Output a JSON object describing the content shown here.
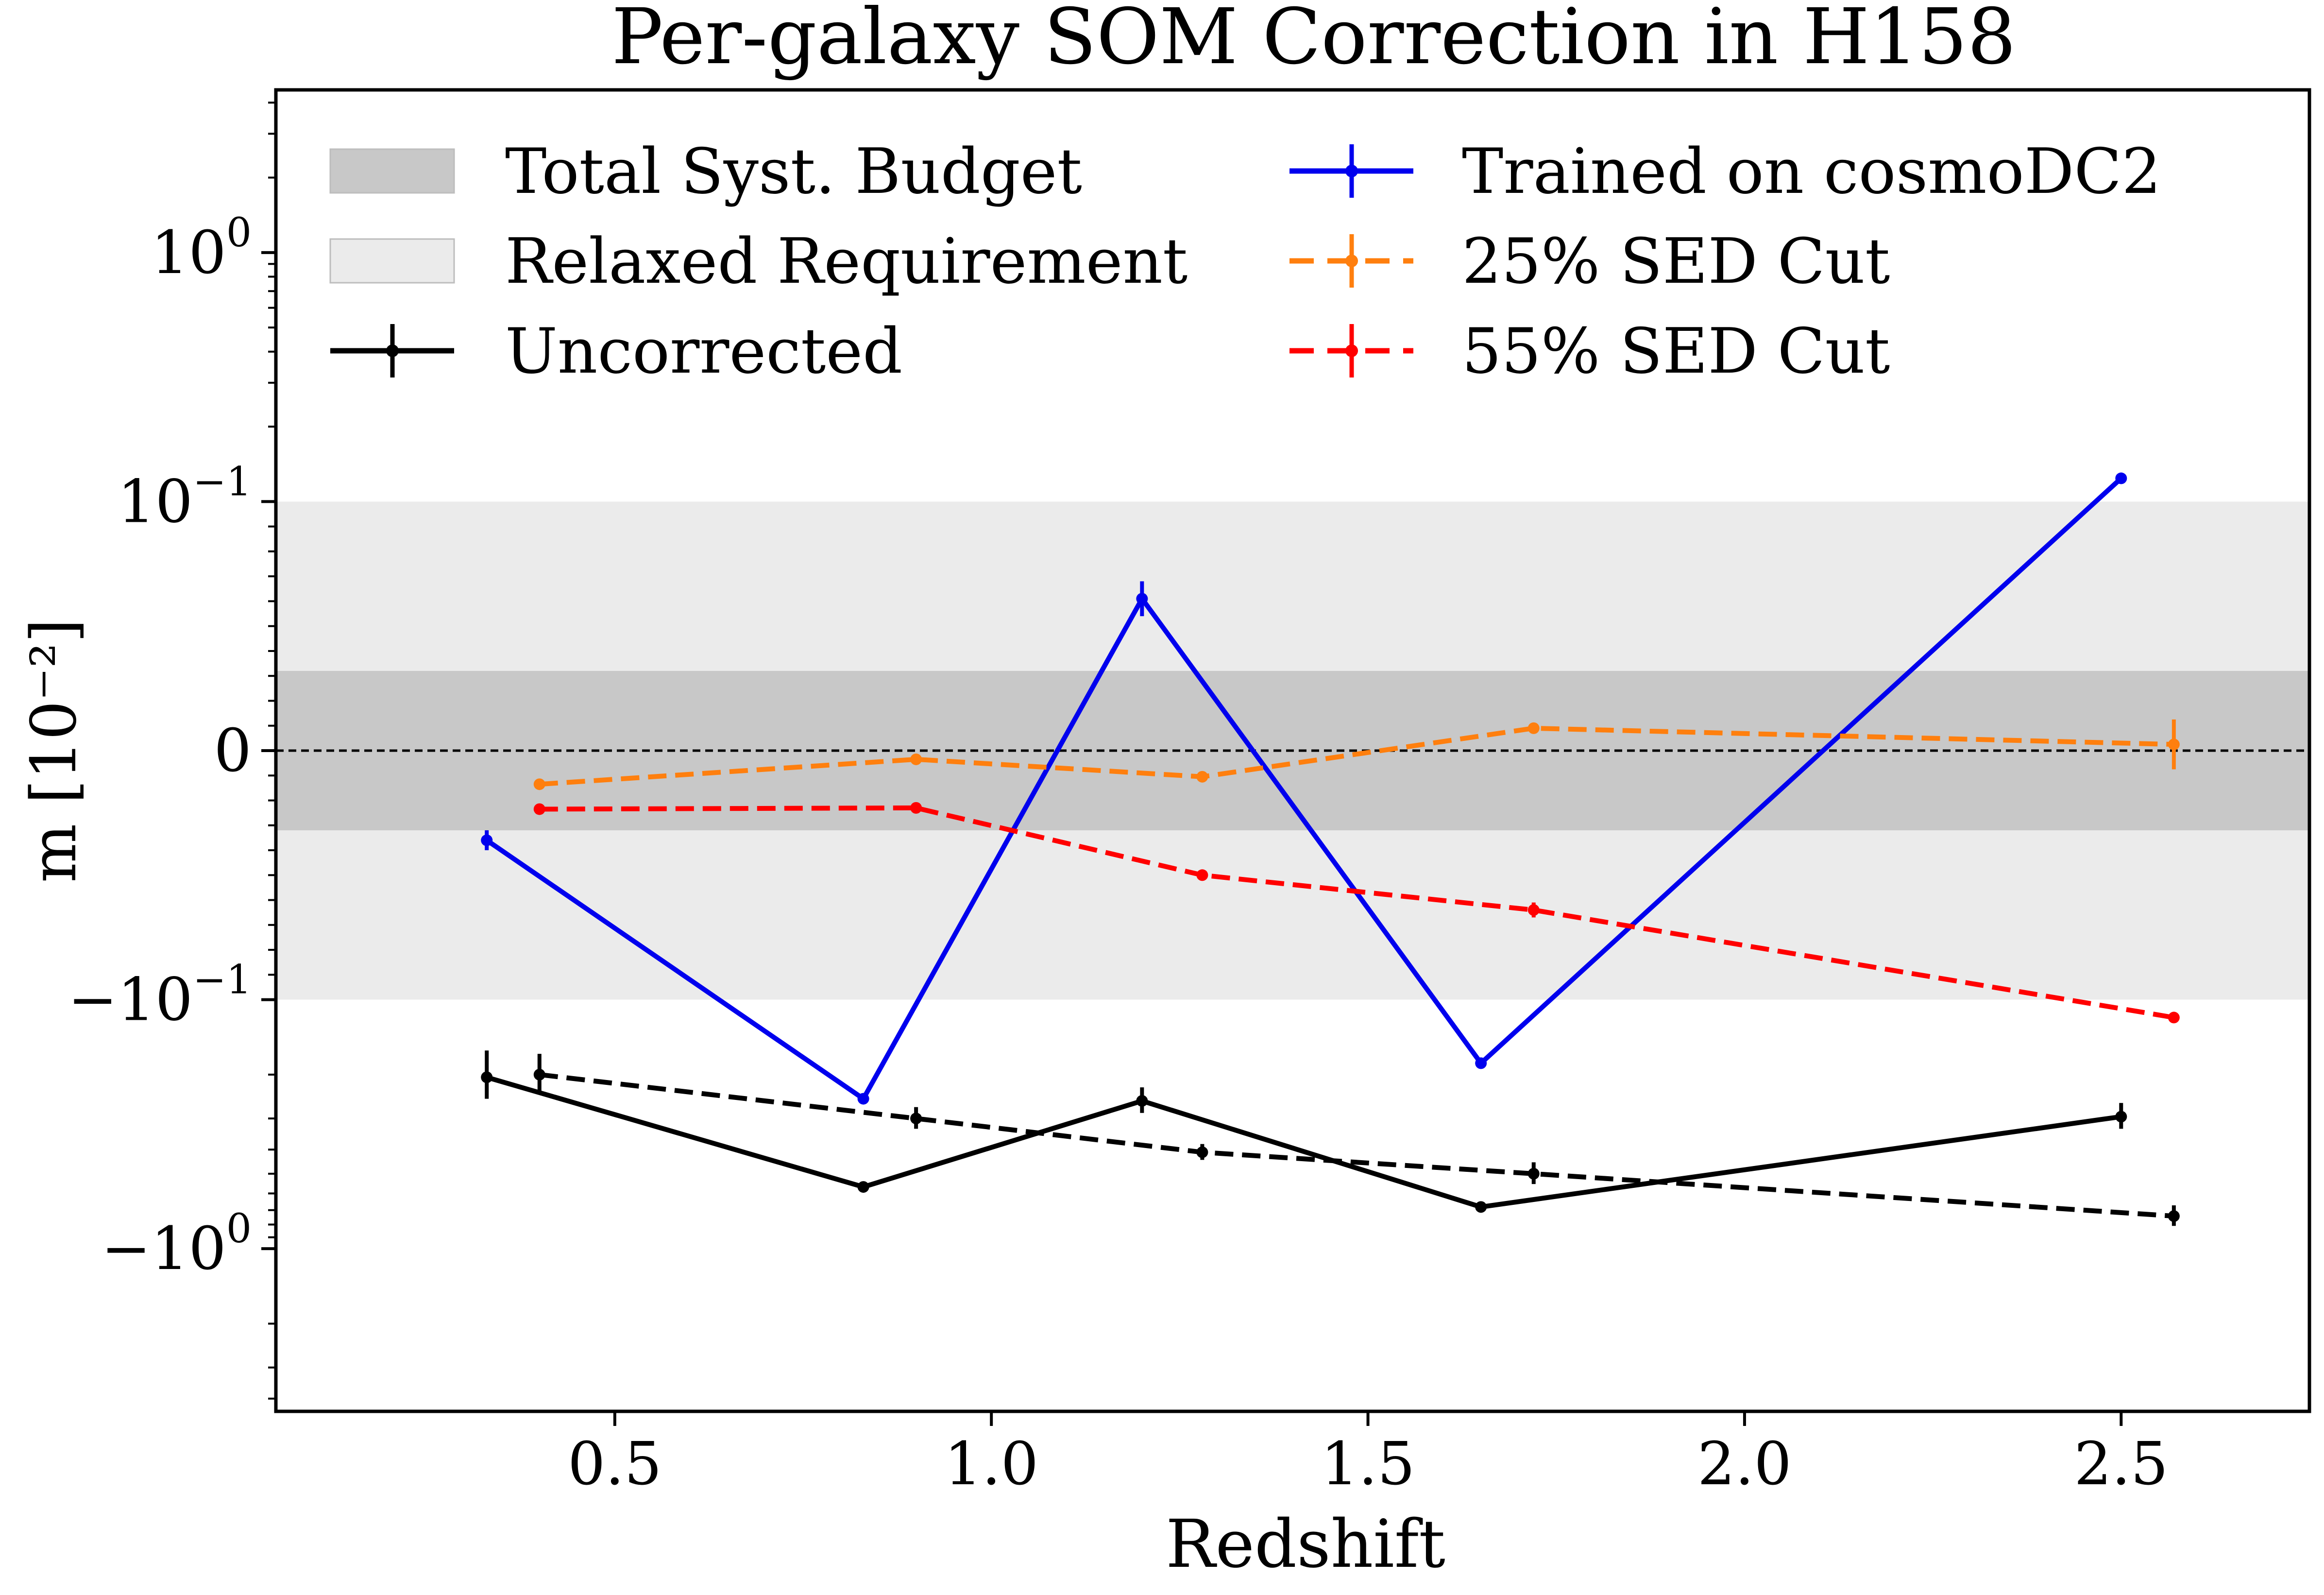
{
  "chart_data": {
    "type": "line",
    "title": "Per-galaxy SOM Correction in H158",
    "xlabel": "Redshift",
    "ylabel": "m [10⁻²]",
    "xlim": [
      0.05,
      2.75
    ],
    "y_scale": "symlog",
    "y_linthresh": 0.1,
    "ylim": [
      -4.5,
      4.5
    ],
    "x_ticks": [
      {
        "value": 0.5,
        "label": "0.5"
      },
      {
        "value": 1.0,
        "label": "1.0"
      },
      {
        "value": 1.5,
        "label": "1.5"
      },
      {
        "value": 2.0,
        "label": "2.0"
      },
      {
        "value": 2.5,
        "label": "2.5"
      }
    ],
    "y_ticks": [
      {
        "value": 1,
        "base": "10",
        "exp": "0",
        "sign": ""
      },
      {
        "value": 0.1,
        "base": "10",
        "exp": "−1",
        "sign": ""
      },
      {
        "value": 0,
        "base": "0",
        "exp": "",
        "sign": ""
      },
      {
        "value": -0.1,
        "base": "10",
        "exp": "−1",
        "sign": "−"
      },
      {
        "value": -1,
        "base": "10",
        "exp": "0",
        "sign": "−"
      }
    ],
    "bands": [
      {
        "name": "Total Syst. Budget",
        "y0": -0.032,
        "y1": 0.032,
        "color": "#c8c8c8"
      },
      {
        "name": "Relaxed Requirement",
        "y0": -0.1,
        "y1": 0.1,
        "color": "#ebebeb"
      }
    ],
    "zero_line": 0,
    "series": [
      {
        "name": "Uncorrected",
        "color": "#000000",
        "dash": false,
        "x": [
          0.33,
          0.83,
          1.2,
          1.65,
          2.5
        ],
        "y": [
          -0.205,
          -0.565,
          -0.255,
          -0.68,
          -0.295
        ],
        "yerr": [
          0.045,
          0.02,
          0.03,
          0.02,
          0.035
        ]
      },
      {
        "name": "",
        "color": "#000000",
        "dash": true,
        "x": [
          0.4,
          0.9,
          1.28,
          1.72,
          2.57
        ],
        "y": [
          -0.2,
          -0.3,
          -0.41,
          -0.5,
          -0.74
        ],
        "yerr": [
          0.035,
          0.03,
          0.03,
          0.05,
          0.07
        ]
      },
      {
        "name": "Trained on cosmoDC2",
        "color": "#0000ee",
        "dash": false,
        "x": [
          0.33,
          0.83,
          1.2,
          1.65,
          2.5
        ],
        "y": [
          -0.036,
          -0.25,
          0.061,
          -0.18,
          0.124
        ],
        "yerr": [
          0.004,
          0.0,
          0.007,
          0.0,
          0.0
        ]
      },
      {
        "name": "25% SED Cut",
        "color": "#ff7f0e",
        "dash": true,
        "x": [
          0.4,
          0.9,
          1.28,
          1.72,
          2.57
        ],
        "y": [
          -0.0135,
          -0.0035,
          -0.0105,
          0.009,
          0.0025
        ],
        "yerr": [
          0.001,
          0.001,
          0.001,
          0.002,
          0.01
        ]
      },
      {
        "name": "55% SED Cut",
        "color": "#ff0000",
        "dash": true,
        "x": [
          0.4,
          0.9,
          1.28,
          1.72,
          2.57
        ],
        "y": [
          -0.0235,
          -0.023,
          -0.05,
          -0.064,
          -0.118
        ],
        "yerr": [
          0.001,
          0.001,
          0.001,
          0.003,
          0.005
        ]
      }
    ],
    "legend": {
      "placement": "top",
      "entries": [
        {
          "label": "Total Syst. Budget",
          "kind": "band",
          "color": "#c8c8c8"
        },
        {
          "label": "Relaxed Requirement",
          "kind": "band",
          "color": "#ebebeb"
        },
        {
          "label": "Uncorrected",
          "kind": "line",
          "color": "#000000",
          "dash": false
        },
        {
          "label": "Trained on cosmoDC2",
          "kind": "line",
          "color": "#0000ee",
          "dash": false
        },
        {
          "label": "25% SED Cut",
          "kind": "line",
          "color": "#ff7f0e",
          "dash": true
        },
        {
          "label": "55% SED Cut",
          "kind": "line",
          "color": "#ff0000",
          "dash": true
        }
      ]
    }
  }
}
